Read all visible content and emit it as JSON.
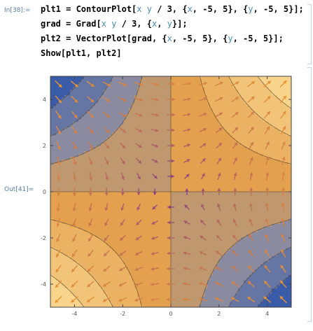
{
  "notebook": {
    "in_label": "In[38]:=",
    "out_label": "Out[41]=",
    "lines": [
      [
        {
          "t": "plt1 = ContourPlot[",
          "c": "sym"
        },
        {
          "t": "x",
          "c": "var"
        },
        {
          "t": " ",
          "c": "sym"
        },
        {
          "t": "y",
          "c": "var"
        },
        {
          "t": " / 3, {",
          "c": "sym"
        },
        {
          "t": "x",
          "c": "var"
        },
        {
          "t": ", -5, 5}, {",
          "c": "sym"
        },
        {
          "t": "y",
          "c": "var"
        },
        {
          "t": ", -5, 5}];",
          "c": "sym"
        }
      ],
      [
        {
          "t": "grad = Grad[",
          "c": "sym"
        },
        {
          "t": "x",
          "c": "var"
        },
        {
          "t": " ",
          "c": "sym"
        },
        {
          "t": "y",
          "c": "var"
        },
        {
          "t": " / 3, {",
          "c": "sym"
        },
        {
          "t": "x",
          "c": "var"
        },
        {
          "t": ", ",
          "c": "sym"
        },
        {
          "t": "y",
          "c": "var"
        },
        {
          "t": "}];",
          "c": "sym"
        }
      ],
      [
        {
          "t": "plt2 = VectorPlot[grad, {",
          "c": "sym"
        },
        {
          "t": "x",
          "c": "var"
        },
        {
          "t": ", -5, 5}, {",
          "c": "sym"
        },
        {
          "t": "y",
          "c": "var"
        },
        {
          "t": ", -5, 5}];",
          "c": "sym"
        }
      ],
      [
        {
          "t": "Show[plt1, plt2]",
          "c": "sym"
        }
      ]
    ]
  },
  "plot": {
    "x_ticks": [
      "-4",
      "-2",
      "0",
      "2",
      "4"
    ],
    "y_ticks": [
      "4",
      "2",
      "0",
      "-2",
      "-4"
    ],
    "xlim": [
      -5,
      5
    ],
    "ylim": [
      -5,
      5
    ],
    "contour_levels": [
      -6,
      -4,
      -2,
      0,
      2,
      4,
      6
    ],
    "colors": {
      "low": "#3a5ca8",
      "mid_low": "#8a8ba0",
      "mid": "#e3a04e",
      "high": "#f9d48d",
      "arrow_low": "#6d2aa0",
      "arrow_high": "#f39a2a"
    }
  }
}
